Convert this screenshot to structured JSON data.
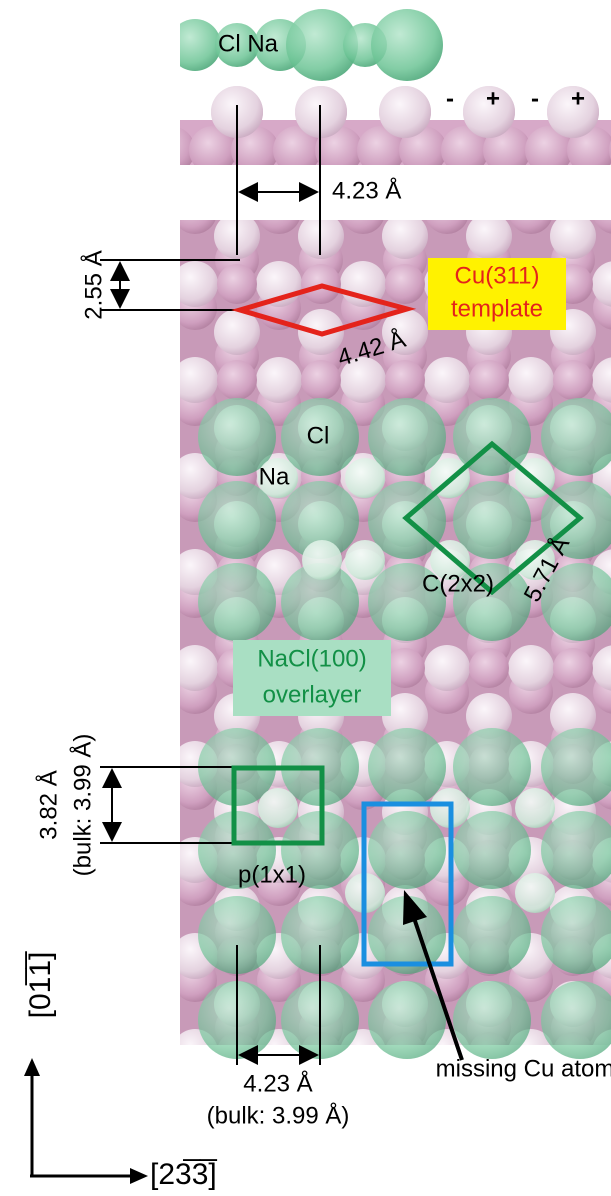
{
  "side_view": {
    "labels": [
      "Cl Na"
    ],
    "charges": [
      "-",
      "+",
      "-",
      "+"
    ]
  },
  "annotations": {
    "top_spacing": "4.23 Å",
    "row_spacing": "2.55 Å",
    "template": [
      "Cu(311)",
      "template"
    ],
    "template_spacing": "4.42 Å",
    "cl_label": "Cl",
    "na_label": "Na",
    "c2x2": "C(2x2)",
    "c2x2_spacing": "5.71 Å",
    "overlayer": [
      "NaCl(100)",
      "overlayer"
    ],
    "p1x1_spacing": [
      "3.82 Å",
      "(bulk: 3.99 Å)"
    ],
    "p1x1": "p(1x1)",
    "bottom_spacing": [
      "4.23 Å",
      "(bulk: 3.99 Å)"
    ],
    "missing": "missing Cu atom"
  },
  "axes": {
    "vertical": "[01̅1̅]",
    "horizontal": "[23̅3̅]"
  }
}
